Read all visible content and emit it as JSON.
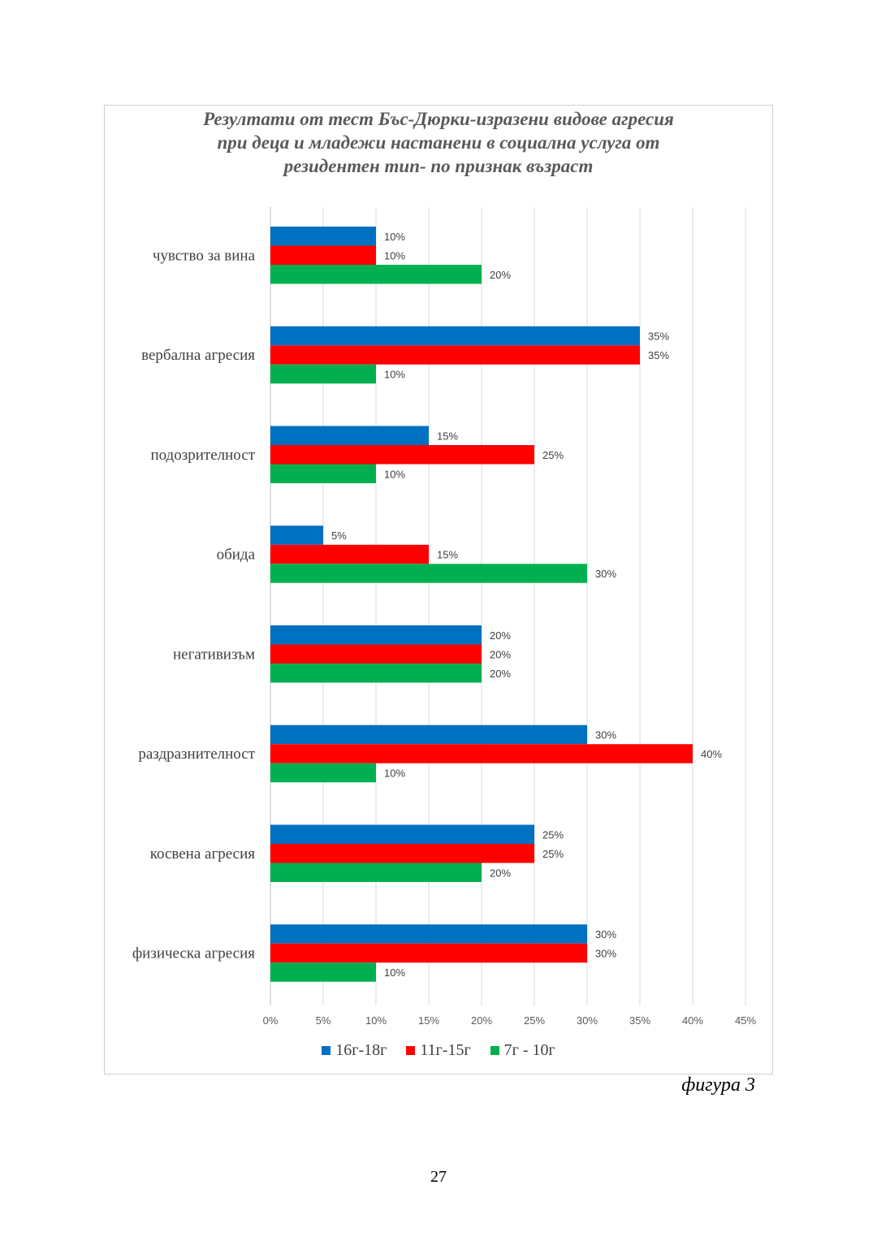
{
  "chart_data": {
    "type": "bar",
    "orientation": "horizontal",
    "title_lines": [
      "Резултати от тест Бъс-Дюрки-изразени видове агресия",
      "при деца и младежи настанени в социална услуга от",
      "резидентен тип- по признак възраст"
    ],
    "categories": [
      "чувство за вина",
      "вербална агресия",
      "подозрителност",
      "обида",
      "негативизъм",
      "раздразнителност",
      "косвена агресия",
      "физическа агресия"
    ],
    "series": [
      {
        "name": "16г-18г",
        "color": "#0070C0",
        "values": [
          10,
          35,
          15,
          5,
          20,
          30,
          25,
          30
        ]
      },
      {
        "name": "11г-15г",
        "color": "#FF0000",
        "values": [
          10,
          35,
          25,
          15,
          20,
          40,
          25,
          30
        ]
      },
      {
        "name": "7г - 10г",
        "color": "#00B050",
        "values": [
          20,
          10,
          10,
          30,
          20,
          10,
          20,
          10
        ]
      }
    ],
    "x_ticks": [
      "0%",
      "5%",
      "10%",
      "15%",
      "20%",
      "25%",
      "30%",
      "35%",
      "40%",
      "45%"
    ],
    "xlim": [
      0,
      45
    ],
    "value_suffix": "%",
    "gridlines": true,
    "legend_position": "bottom"
  },
  "caption": "фигура 3",
  "page_number": "27"
}
